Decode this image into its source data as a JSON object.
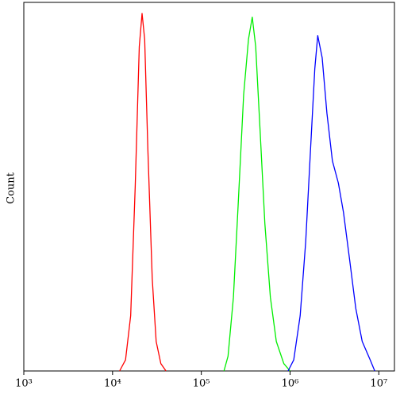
{
  "chart_data": {
    "type": "line",
    "y_label": "Count",
    "xscale": "log",
    "xlim": [
      1000,
      15000000
    ],
    "ylim": [
      0,
      100
    ],
    "xticks": [
      {
        "value": 1000,
        "label": "10³"
      },
      {
        "value": 10000,
        "label": "10⁴"
      },
      {
        "value": 100000,
        "label": "10⁵"
      },
      {
        "value": 1000000,
        "label": "10⁶"
      },
      {
        "value": 10000000,
        "label": "10⁷"
      }
    ],
    "series": [
      {
        "color": "#ff0000",
        "x": [
          12000,
          14000,
          16000,
          18000,
          20000,
          21500,
          23000,
          25000,
          28000,
          31000,
          35000,
          40000
        ],
        "values": [
          0,
          3,
          15,
          50,
          88,
          97,
          90,
          60,
          25,
          8,
          2,
          0
        ]
      },
      {
        "color": "#00ee00",
        "x": [
          180000,
          200000,
          230000,
          260000,
          300000,
          340000,
          375000,
          410000,
          460000,
          520000,
          600000,
          700000,
          850000,
          1000000
        ],
        "values": [
          0,
          4,
          20,
          45,
          75,
          90,
          96,
          88,
          65,
          40,
          20,
          8,
          2,
          0
        ]
      },
      {
        "color": "#0000ff",
        "x": [
          950000,
          1100000,
          1300000,
          1500000,
          1700000,
          1900000,
          2050000,
          2300000,
          2600000,
          3000000,
          3500000,
          4000000,
          4700000,
          5500000,
          6500000,
          8000000,
          9000000
        ],
        "values": [
          0,
          3,
          15,
          35,
          60,
          82,
          91,
          85,
          70,
          57,
          51,
          43,
          30,
          17,
          8,
          3,
          0
        ]
      }
    ]
  }
}
